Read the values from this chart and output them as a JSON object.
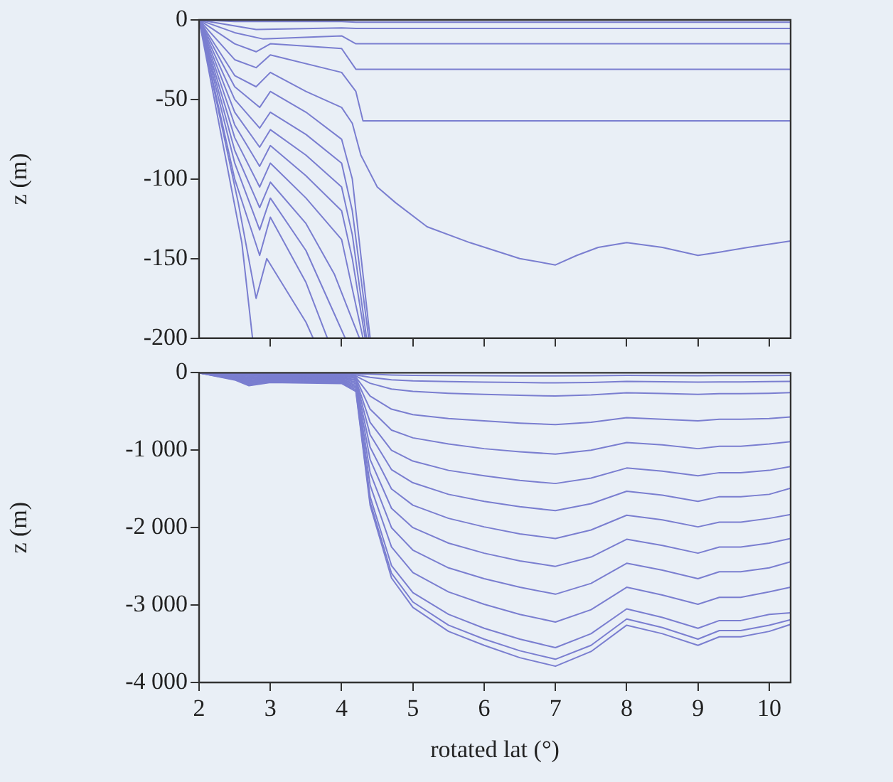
{
  "chart_data": [
    {
      "type": "line",
      "ylabel": "z (m)",
      "xlim": [
        2,
        10.3
      ],
      "xticks": [
        3,
        4,
        5,
        6,
        7,
        8,
        9,
        10
      ],
      "ylim": [
        -200,
        0
      ],
      "yticks": [
        -200,
        -150,
        -100,
        -50,
        0
      ],
      "tick_labels": "y",
      "grid": false,
      "legend": false,
      "marker": "none",
      "line_style": "solid",
      "series": [
        {
          "color": "#7a7ed0",
          "x": [
            2,
            2.5,
            4.0,
            4.2,
            10.3
          ],
          "values": [
            0,
            -1,
            -1,
            -1.5,
            -1.5
          ]
        },
        {
          "color": "#7a7ed0",
          "x": [
            2,
            2.4,
            2.8,
            4.0,
            4.2,
            10.3
          ],
          "values": [
            0,
            -3,
            -6,
            -5,
            -5.4,
            -5.4
          ]
        },
        {
          "color": "#7a7ed0",
          "x": [
            2,
            2.5,
            2.9,
            4.0,
            4.2,
            10.3
          ],
          "values": [
            0,
            -8,
            -12,
            -10,
            -15,
            -15
          ]
        },
        {
          "color": "#7a7ed0",
          "x": [
            2,
            2.5,
            2.8,
            3.0,
            4.0,
            4.2,
            10.3
          ],
          "values": [
            0,
            -15,
            -20,
            -15,
            -18,
            -31,
            -31
          ]
        },
        {
          "color": "#7a7ed0",
          "x": [
            2,
            2.5,
            2.8,
            3.0,
            4.0,
            4.2,
            4.3,
            10.3
          ],
          "values": [
            0,
            -25,
            -30,
            -22,
            -33,
            -45,
            -63.5,
            -63.5
          ]
        },
        {
          "color": "#7a7ed0",
          "x": [
            2,
            2.5,
            2.8,
            3.0,
            3.5,
            4.0,
            4.15,
            4.27,
            4.5,
            4.76,
            5.2,
            5.8,
            6.5,
            7,
            7.3,
            7.6,
            8,
            8.5,
            9,
            9.3,
            9.7,
            10.3
          ],
          "values": [
            0,
            -35,
            -42,
            -33,
            -45,
            -55,
            -65,
            -85,
            -105,
            -115,
            -130,
            -140,
            -150,
            -154,
            -148,
            -143,
            -140,
            -143,
            -148,
            -146,
            -143,
            -139
          ]
        },
        {
          "color": "#7a7ed0",
          "x": [
            2,
            2.5,
            2.85,
            3.0,
            3.5,
            4.0,
            4.15,
            4.4
          ],
          "values": [
            0,
            -42,
            -55,
            -45,
            -58,
            -75,
            -100,
            -200
          ]
        },
        {
          "color": "#7a7ed0",
          "x": [
            2,
            2.5,
            2.85,
            3.0,
            3.5,
            4.0,
            4.15,
            4.38
          ],
          "values": [
            0,
            -50,
            -68,
            -58,
            -72,
            -90,
            -120,
            -200
          ]
        },
        {
          "color": "#7a7ed0",
          "x": [
            2,
            2.5,
            2.85,
            3.0,
            3.5,
            4.0,
            4.15,
            4.35
          ],
          "values": [
            0,
            -58,
            -80,
            -69,
            -85,
            -105,
            -135,
            -200
          ]
        },
        {
          "color": "#7a7ed0",
          "x": [
            2,
            2.5,
            2.85,
            3.0,
            3.5,
            4.0,
            4.15,
            4.33
          ],
          "values": [
            0,
            -66,
            -92,
            -79,
            -98,
            -120,
            -150,
            -200
          ]
        },
        {
          "color": "#7a7ed0",
          "x": [
            2,
            2.5,
            2.85,
            3.0,
            3.5,
            4.0,
            4.3
          ],
          "values": [
            0,
            -74,
            -105,
            -90,
            -112,
            -138,
            -200
          ]
        },
        {
          "color": "#7a7ed0",
          "x": [
            2,
            2.5,
            2.85,
            3.0,
            3.5,
            3.9,
            4.25
          ],
          "values": [
            0,
            -82,
            -118,
            -102,
            -128,
            -160,
            -200
          ]
        },
        {
          "color": "#7a7ed0",
          "x": [
            2,
            2.5,
            2.85,
            3.0,
            3.5,
            3.9,
            4.05
          ],
          "values": [
            0,
            -90,
            -132,
            -112,
            -145,
            -185,
            -200
          ]
        },
        {
          "color": "#7a7ed0",
          "x": [
            2,
            2.5,
            2.85,
            3.0,
            3.5,
            3.8
          ],
          "values": [
            0,
            -100,
            -148,
            -124,
            -165,
            -200
          ]
        },
        {
          "color": "#7a7ed0",
          "x": [
            2,
            2.55,
            2.8,
            2.95,
            3.5,
            3.6
          ],
          "values": [
            0,
            -115,
            -175,
            -150,
            -190,
            -200
          ]
        },
        {
          "color": "#7a7ed0",
          "x": [
            2,
            2.6,
            2.75
          ],
          "values": [
            0,
            -140,
            -200
          ]
        }
      ]
    },
    {
      "type": "line",
      "xlabel": "rotated lat (°)",
      "ylabel": "z (m)",
      "xlim": [
        2,
        10.3
      ],
      "xticks": [
        2,
        3,
        4,
        5,
        6,
        7,
        8,
        9,
        10
      ],
      "ylim": [
        -4000,
        0
      ],
      "yticks": [
        {
          "value": -4000,
          "label": "-4 000"
        },
        {
          "value": -3000,
          "label": "-3 000"
        },
        {
          "value": -2000,
          "label": "-2 000"
        },
        {
          "value": -1000,
          "label": "-1 000"
        },
        0
      ],
      "grid": false,
      "legend": false,
      "marker": "none",
      "line_style": "solid",
      "x": [
        2,
        2.5,
        2.7,
        3,
        3.5,
        4,
        4.2,
        4.4,
        4.7,
        5,
        5.5,
        6,
        6.5,
        7,
        7.5,
        8,
        8.5,
        9,
        9.3,
        9.6,
        10,
        10.3
      ],
      "series": [
        {
          "color": "#7a7ed0",
          "values": [
            0,
            -5,
            -8,
            -6,
            -7,
            -8,
            -12,
            -18,
            -28,
            -32,
            -35,
            -37,
            -39,
            -40,
            -38,
            -34,
            -36,
            -37,
            -36,
            -36,
            -35,
            -34
          ]
        },
        {
          "color": "#7a7ed0",
          "values": [
            0,
            -12,
            -20,
            -15,
            -17,
            -18,
            -27,
            -59,
            -91,
            -104,
            -114,
            -121,
            -126,
            -130,
            -124,
            -112,
            -116,
            -121,
            -117,
            -117,
            -114,
            -111
          ]
        },
        {
          "color": "#7a7ed0",
          "values": [
            0,
            -18,
            -32,
            -24,
            -26,
            -28,
            -42,
            -135,
            -210,
            -240,
            -264,
            -279,
            -291,
            -300,
            -285,
            -258,
            -267,
            -279,
            -270,
            -270,
            -264,
            -255
          ]
        },
        {
          "color": "#7a7ed0",
          "values": [
            0,
            -25,
            -45,
            -33,
            -36,
            -38,
            -57,
            -300,
            -470,
            -540,
            -590,
            -620,
            -650,
            -670,
            -640,
            -580,
            -600,
            -620,
            -600,
            -600,
            -590,
            -570
          ]
        },
        {
          "color": "#7a7ed0",
          "values": [
            0,
            -32,
            -58,
            -42,
            -45,
            -48,
            -72,
            -470,
            -740,
            -840,
            -920,
            -980,
            -1020,
            -1050,
            -1000,
            -900,
            -930,
            -980,
            -950,
            -950,
            -920,
            -890
          ]
        },
        {
          "color": "#7a7ed0",
          "values": [
            0,
            -38,
            -70,
            -52,
            -55,
            -58,
            -90,
            -640,
            -1000,
            -1140,
            -1260,
            -1330,
            -1390,
            -1430,
            -1360,
            -1230,
            -1270,
            -1330,
            -1290,
            -1290,
            -1260,
            -1210
          ]
        },
        {
          "color": "#7a7ed0",
          "values": [
            0,
            -45,
            -82,
            -60,
            -65,
            -68,
            -100,
            -800,
            -1250,
            -1420,
            -1570,
            -1660,
            -1730,
            -1780,
            -1690,
            -1530,
            -1580,
            -1660,
            -1600,
            -1600,
            -1570,
            -1490
          ]
        },
        {
          "color": "#7a7ed0",
          "values": [
            0,
            -52,
            -94,
            -70,
            -74,
            -78,
            -120,
            -960,
            -1500,
            -1710,
            -1880,
            -1990,
            -2080,
            -2140,
            -2030,
            -1840,
            -1900,
            -1990,
            -1930,
            -1930,
            -1880,
            -1830
          ]
        },
        {
          "color": "#7a7ed0",
          "values": [
            0,
            -58,
            -106,
            -78,
            -84,
            -88,
            -140,
            -1120,
            -1750,
            -2000,
            -2200,
            -2330,
            -2430,
            -2500,
            -2380,
            -2150,
            -2230,
            -2330,
            -2250,
            -2250,
            -2200,
            -2140
          ]
        },
        {
          "color": "#7a7ed0",
          "values": [
            0,
            -65,
            -118,
            -88,
            -93,
            -98,
            -160,
            -1290,
            -2000,
            -2290,
            -2520,
            -2660,
            -2770,
            -2860,
            -2720,
            -2460,
            -2550,
            -2660,
            -2570,
            -2570,
            -2520,
            -2440
          ]
        },
        {
          "color": "#7a7ed0",
          "values": [
            0,
            -72,
            -130,
            -97,
            -103,
            -108,
            -180,
            -1450,
            -2250,
            -2580,
            -2830,
            -2990,
            -3120,
            -3220,
            -3060,
            -2770,
            -2870,
            -2990,
            -2900,
            -2900,
            -2830,
            -2770
          ]
        },
        {
          "color": "#7a7ed0",
          "values": [
            0,
            -78,
            -142,
            -106,
            -112,
            -118,
            -200,
            -1600,
            -2490,
            -2840,
            -3120,
            -3300,
            -3440,
            -3550,
            -3370,
            -3050,
            -3160,
            -3300,
            -3200,
            -3200,
            -3120,
            -3100
          ]
        },
        {
          "color": "#7a7ed0",
          "values": [
            0,
            -85,
            -154,
            -115,
            -122,
            -128,
            -220,
            -1670,
            -2590,
            -2960,
            -3260,
            -3440,
            -3590,
            -3700,
            -3520,
            -3180,
            -3290,
            -3440,
            -3330,
            -3330,
            -3260,
            -3190
          ]
        },
        {
          "color": "#7a7ed0",
          "values": [
            0,
            -92,
            -166,
            -124,
            -131,
            -138,
            -240,
            -1710,
            -2650,
            -3030,
            -3340,
            -3520,
            -3680,
            -3790,
            -3600,
            -3260,
            -3370,
            -3520,
            -3410,
            -3410,
            -3340,
            -3250
          ]
        }
      ]
    }
  ]
}
